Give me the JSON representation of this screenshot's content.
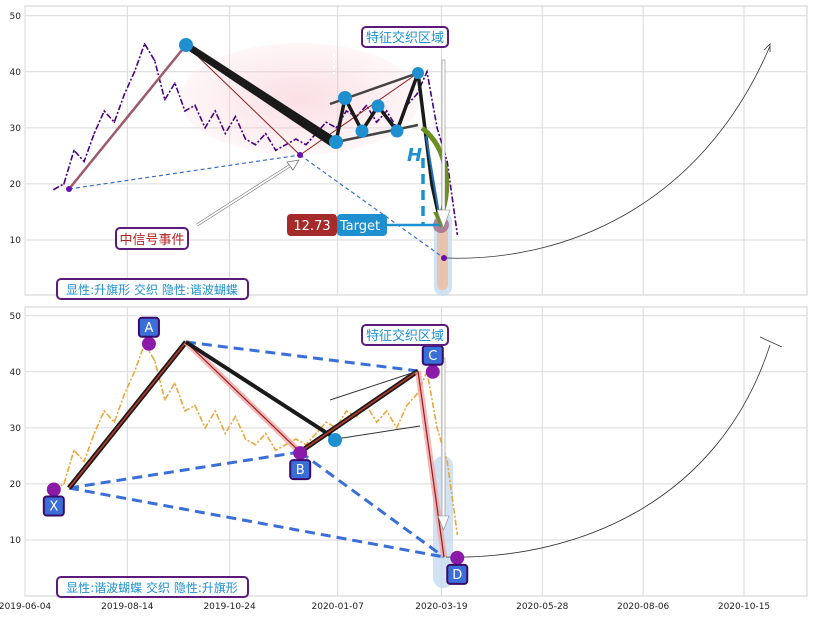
{
  "chart_data": [
    {
      "type": "line",
      "panel": "top",
      "ylim": [
        0,
        52
      ],
      "yticks": [
        10,
        20,
        30,
        40,
        50
      ],
      "grid": true,
      "series": [
        {
          "x": [
            "2019-06-24",
            "2019-07-01",
            "2019-07-08",
            "2019-07-15",
            "2019-07-22",
            "2019-07-29",
            "2019-08-05",
            "2019-08-12",
            "2019-08-19",
            "2019-08-26",
            "2019-09-02",
            "2019-09-09",
            "2019-09-16",
            "2019-09-23",
            "2019-09-30",
            "2019-10-07",
            "2019-10-14",
            "2019-10-21",
            "2019-10-28",
            "2019-11-04",
            "2019-11-11",
            "2019-11-18",
            "2019-11-25",
            "2019-12-02",
            "2019-12-09",
            "2019-12-16",
            "2019-12-23",
            "2019-12-30",
            "2020-01-06",
            "2020-01-13",
            "2020-01-20",
            "2020-01-27",
            "2020-02-03",
            "2020-02-10",
            "2020-02-17",
            "2020-02-24",
            "2020-03-02",
            "2020-03-09",
            "2020-03-16",
            "2020-03-23",
            "2020-03-30"
          ],
          "values": [
            19,
            20,
            26,
            24,
            29,
            33,
            31,
            36,
            40,
            45,
            42,
            35,
            38,
            33,
            34,
            30,
            33,
            29,
            32,
            28,
            27,
            29,
            26,
            27,
            28,
            27,
            29,
            31,
            30,
            33,
            32,
            34,
            31,
            33,
            30,
            34,
            36,
            40,
            30,
            24,
            11
          ],
          "color": "#4b0082"
        }
      ],
      "annotations": {
        "zone_label": "特征交织区域",
        "signal_label": "中信号事件",
        "target_value": "12.73",
        "target_label": "Target",
        "h_label": "H",
        "pattern_text": "显性:升旗形 交织 隐性:谐波蝴蝶"
      }
    },
    {
      "type": "line",
      "panel": "bottom",
      "ylim": [
        0,
        52
      ],
      "yticks": [
        10,
        20,
        30,
        40,
        50
      ],
      "grid": true,
      "xticks": [
        "2019-06-04",
        "2019-08-14",
        "2019-10-24",
        "2020-01-07",
        "2020-03-19",
        "2020-05-28",
        "2020-08-06",
        "2020-10-15"
      ],
      "series": [
        {
          "x": [
            "2019-06-24",
            "2019-07-01",
            "2019-07-08",
            "2019-07-15",
            "2019-07-22",
            "2019-07-29",
            "2019-08-05",
            "2019-08-12",
            "2019-08-19",
            "2019-08-26",
            "2019-09-02",
            "2019-09-09",
            "2019-09-16",
            "2019-09-23",
            "2019-09-30",
            "2019-10-07",
            "2019-10-14",
            "2019-10-21",
            "2019-10-28",
            "2019-11-04",
            "2019-11-11",
            "2019-11-18",
            "2019-11-25",
            "2019-12-02",
            "2019-12-09",
            "2019-12-16",
            "2019-12-23",
            "2019-12-30",
            "2020-01-06",
            "2020-01-13",
            "2020-01-20",
            "2020-01-27",
            "2020-02-03",
            "2020-02-10",
            "2020-02-17",
            "2020-02-24",
            "2020-03-02",
            "2020-03-09",
            "2020-03-16",
            "2020-03-23",
            "2020-03-30"
          ],
          "values": [
            19,
            20,
            26,
            24,
            29,
            33,
            31,
            36,
            40,
            45,
            42,
            35,
            38,
            33,
            34,
            30,
            33,
            29,
            32,
            28,
            27,
            29,
            26,
            27,
            28,
            27,
            29,
            31,
            30,
            33,
            32,
            34,
            31,
            33,
            30,
            34,
            36,
            40,
            30,
            24,
            11
          ],
          "color": "#e8a83a"
        }
      ],
      "points": [
        {
          "label": "X",
          "x": "2019-06-24",
          "y": 19
        },
        {
          "label": "A",
          "x": "2019-08-29",
          "y": 45
        },
        {
          "label": "B",
          "x": "2019-12-12",
          "y": 25.5
        },
        {
          "label": "C",
          "x": "2020-03-13",
          "y": 40
        },
        {
          "label": "D",
          "x": "2020-03-30",
          "y": 6.8
        }
      ],
      "annotations": {
        "zone_label": "特征交织区域",
        "pattern_text": "显性:谐波蝴蝶 交织 隐性:升旗形"
      }
    }
  ]
}
